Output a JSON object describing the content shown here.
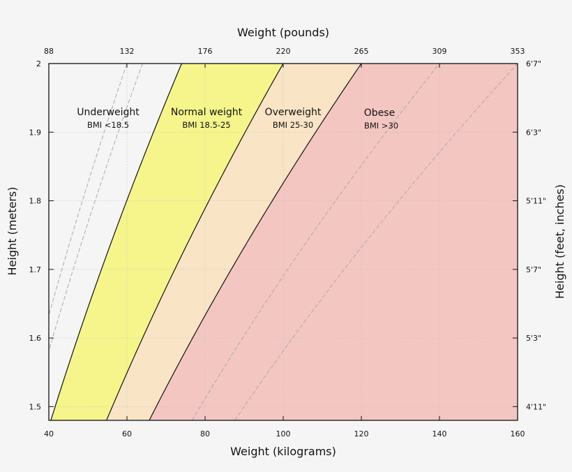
{
  "chart_data": {
    "type": "area",
    "title": "",
    "xlabel": "Weight (kilograms)",
    "x2label": "Weight (pounds)",
    "ylabel": "Height (meters)",
    "y2label": "Height (feet, inches)",
    "xlim": [
      40,
      160
    ],
    "ylim": [
      1.48,
      2.0
    ],
    "x_ticks": [
      40,
      60,
      80,
      100,
      120,
      140,
      160
    ],
    "x2_tick_labels": [
      "88",
      "132",
      "176",
      "220",
      "265",
      "309",
      "353"
    ],
    "y_ticks": [
      1.5,
      1.6,
      1.7,
      1.8,
      1.9,
      2.0
    ],
    "y_tick_labels": [
      "1.5",
      "1.6",
      "1.7",
      "1.8",
      "1.9",
      "2"
    ],
    "y2_tick_labels": [
      "4'11\"",
      "5'3\"",
      "5'7\"",
      "5'11\"",
      "6'3\"",
      "6'7\""
    ],
    "grid": true,
    "regions": [
      {
        "name": "Underweight",
        "label": "BMI <18.5",
        "bmi_min": 0,
        "bmi_max": 18.5,
        "color": "#f5f5f5"
      },
      {
        "name": "Normal weight",
        "label": "BMI 18.5-25",
        "bmi_min": 18.5,
        "bmi_max": 25,
        "color": "#f5f58c"
      },
      {
        "name": "Overweight",
        "label": "BMI 25-30",
        "bmi_min": 25,
        "bmi_max": 30,
        "color": "#f9e5c6"
      },
      {
        "name": "Obese",
        "label": "BMI >30",
        "bmi_min": 30,
        "bmi_max": 999,
        "color": "#f4c6c2"
      }
    ],
    "dashed_bmi_lines": [
      15,
      16,
      35,
      40
    ]
  }
}
